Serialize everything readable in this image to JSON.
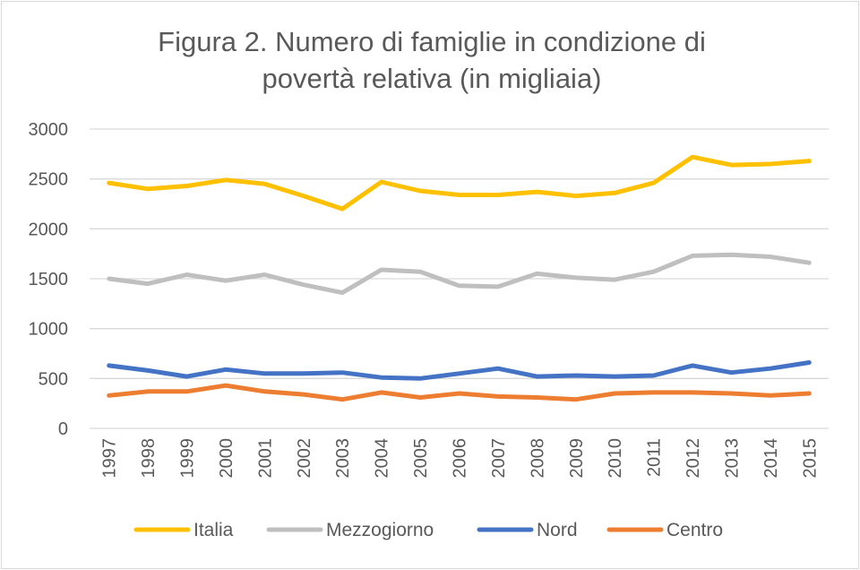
{
  "chart_data": {
    "type": "line",
    "title_lines": [
      "Figura 2. Numero di famiglie in condizione di",
      "povertà relativa (in migliaia)"
    ],
    "xlabel": "",
    "ylabel": "",
    "categories": [
      "1997",
      "1998",
      "1999",
      "2000",
      "2001",
      "2002",
      "2003",
      "2004",
      "2005",
      "2006",
      "2007",
      "2008",
      "2009",
      "2010",
      "2011",
      "2012",
      "2013",
      "2014",
      "2015"
    ],
    "ylim": [
      0,
      3000
    ],
    "yticks": [
      0,
      500,
      1000,
      1500,
      2000,
      2500,
      3000
    ],
    "grid": true,
    "legend_position": "bottom",
    "series": [
      {
        "name": "Italia",
        "color": "#FFC000",
        "values": [
          2460,
          2400,
          2430,
          2490,
          2450,
          2330,
          2200,
          2470,
          2380,
          2340,
          2340,
          2370,
          2330,
          2360,
          2460,
          2720,
          2640,
          2650,
          2680
        ]
      },
      {
        "name": "Mezzogiorno",
        "color": "#BFBFBF",
        "values": [
          1500,
          1450,
          1540,
          1480,
          1540,
          1440,
          1360,
          1590,
          1570,
          1430,
          1420,
          1550,
          1510,
          1490,
          1570,
          1730,
          1740,
          1720,
          1660
        ]
      },
      {
        "name": "Nord",
        "color": "#4472C4",
        "values": [
          630,
          580,
          520,
          590,
          550,
          550,
          560,
          510,
          500,
          550,
          600,
          520,
          530,
          520,
          530,
          630,
          560,
          600,
          660
        ]
      },
      {
        "name": "Centro",
        "color": "#ED7D31",
        "values": [
          330,
          370,
          370,
          430,
          370,
          340,
          290,
          360,
          310,
          350,
          320,
          310,
          290,
          350,
          360,
          360,
          350,
          330,
          350
        ]
      }
    ]
  }
}
